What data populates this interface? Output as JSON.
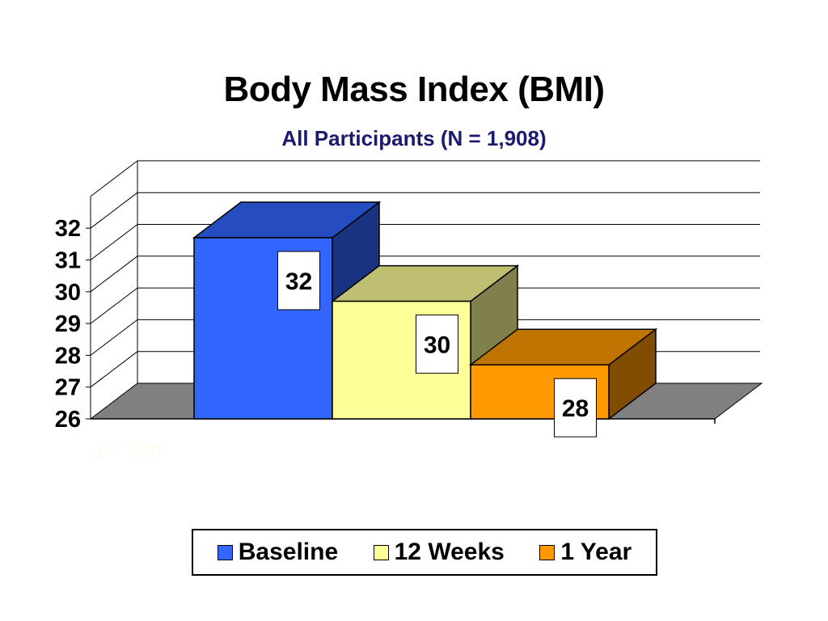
{
  "chart_data": {
    "type": "bar",
    "title": "Body Mass Index (BMI)",
    "subtitle": "All Participants (N = 1,908)",
    "categories": [
      "Baseline",
      "12 Weeks",
      "1 Year"
    ],
    "values": [
      31.7,
      29.7,
      27.7
    ],
    "data_labels": [
      "32",
      "30",
      "28"
    ],
    "colors": [
      "#3366ff",
      "#ffff99",
      "#ff9900"
    ],
    "ylim": [
      26,
      32
    ],
    "yticks": [
      "26",
      "27",
      "28",
      "29",
      "30",
      "31",
      "32"
    ],
    "xlabel": "",
    "ylabel": "",
    "grid": true,
    "legend_position": "bottom",
    "annotation": "p < .000",
    "style": "3d-stepped"
  }
}
